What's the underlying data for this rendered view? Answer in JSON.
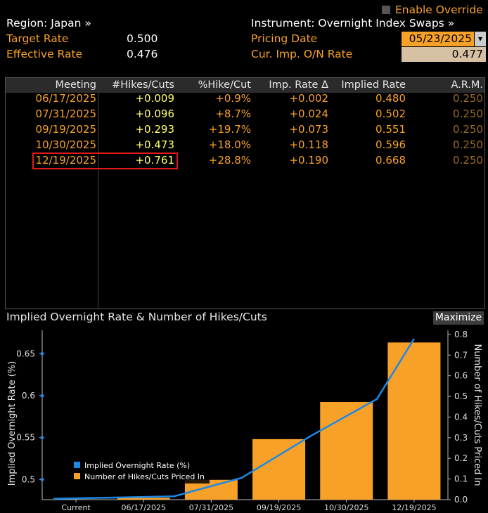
{
  "header": {
    "region": "Region: Japan »",
    "target_rate_label": "Target Rate",
    "target_rate_value": "0.500",
    "effective_rate_label": "Effective Rate",
    "effective_rate_value": "0.476",
    "instrument": "Instrument: Overnight Index Swaps »",
    "pricing_date_label": "Pricing Date",
    "pricing_date_value": "05/23/2025",
    "cur_imp_label": "Cur. Imp. O/N Rate",
    "cur_imp_value": "0.477",
    "enable_override": "Enable Override"
  },
  "table": {
    "columns": [
      "Meeting",
      "#Hikes/Cuts",
      "%Hike/Cut",
      "Imp. Rate Δ",
      "Implied Rate",
      "A.R.M."
    ],
    "rows": [
      [
        "06/17/2025",
        "+0.009",
        "+0.9%",
        "+0.002",
        "0.480",
        "0.250"
      ],
      [
        "07/31/2025",
        "+0.096",
        "+8.7%",
        "+0.024",
        "0.502",
        "0.250"
      ],
      [
        "09/19/2025",
        "+0.293",
        "+19.7%",
        "+0.073",
        "0.551",
        "0.250"
      ],
      [
        "10/30/2025",
        "+0.473",
        "+18.0%",
        "+0.118",
        "0.596",
        "0.250"
      ],
      [
        "12/19/2025",
        "+0.761",
        "+28.8%",
        "+0.190",
        "0.668",
        "0.250"
      ]
    ]
  },
  "chart_panel": {
    "title": "Implied Overnight Rate & Number of Hikes/Cuts",
    "maximize": "Maximize"
  },
  "colors": {
    "line": "#1e88e5",
    "bar": "#f7a128",
    "accent_orange": "#f7a128",
    "highlight_box": "#e01a1a"
  },
  "chart_data": {
    "type": "bar+line",
    "categories": [
      "Current",
      "06/17/2025",
      "07/31/2025",
      "09/19/2025",
      "10/30/2025",
      "12/19/2025"
    ],
    "series": [
      {
        "name": "Implied Overnight Rate (%)",
        "type": "line",
        "axis": "left",
        "values": [
          0.477,
          0.48,
          0.502,
          0.551,
          0.596,
          0.668
        ]
      },
      {
        "name": "Number of Hikes/Cuts Priced In",
        "type": "bar",
        "axis": "right",
        "values": [
          null,
          0.009,
          0.096,
          0.293,
          0.473,
          0.761
        ]
      }
    ],
    "ylabel_left": "Implied Overnight Rate (%)",
    "ylabel_right": "Number of Hikes/Cuts Priced In",
    "yticks_left": [
      "0.5",
      "0.55",
      "0.6",
      "0.65"
    ],
    "yticks_right": [
      "0.0",
      "0.1",
      "0.2",
      "0.3",
      "0.4",
      "0.5",
      "0.6",
      "0.7",
      "0.8"
    ],
    "ylim_left": [
      0.476,
      0.678
    ],
    "ylim_right": [
      0,
      0.82
    ],
    "legend_position": "bottom-left"
  }
}
